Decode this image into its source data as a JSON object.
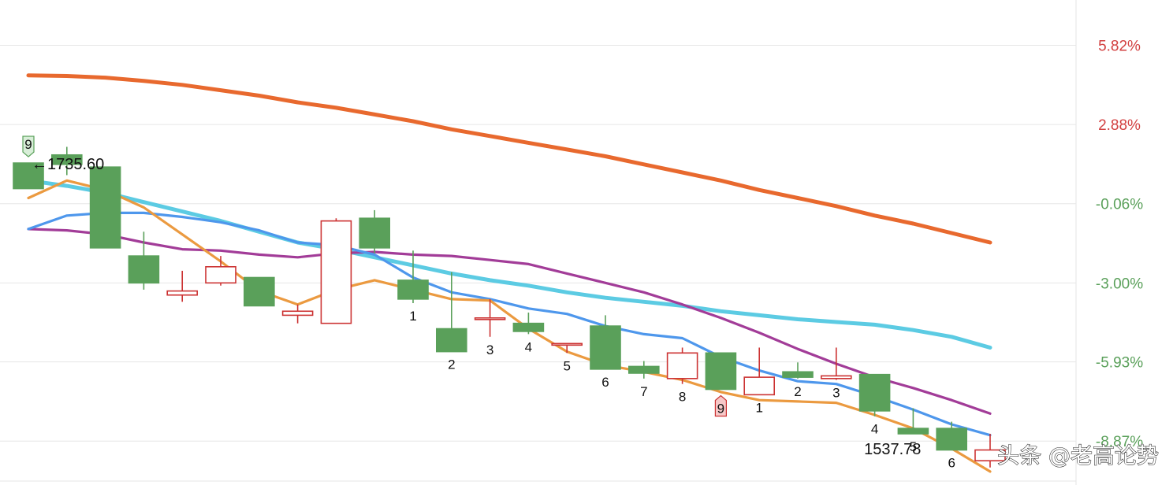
{
  "chart_data": {
    "type": "candlestick",
    "title": "",
    "price_axis": {
      "ticks": [
        "5.82%",
        "2.88%",
        "-0.06%",
        "-3.00%",
        "-5.93%",
        "-8.87%"
      ],
      "tick_values": [
        5.82,
        2.88,
        -0.06,
        -3.0,
        -5.93,
        -8.87
      ],
      "range": [
        -10.5,
        7.5
      ]
    },
    "colors": {
      "up": "#cc3333",
      "down": "#5aa05a",
      "axis_pos": "#d24040",
      "axis_neg": "#5aa05a",
      "grid": "#e6e6e6"
    },
    "candles": [
      {
        "o": 1.45,
        "h": 1.45,
        "c": 0.5,
        "l": 0.5
      },
      {
        "o": 1.75,
        "h": 2.05,
        "c": 1.4,
        "l": 1.0
      },
      {
        "o": 1.3,
        "h": 1.3,
        "c": -1.7,
        "l": -1.7
      },
      {
        "o": -2.0,
        "h": -1.1,
        "c": -3.0,
        "l": -3.25
      },
      {
        "o": -3.45,
        "h": -2.55,
        "c": -3.3,
        "l": -3.7
      },
      {
        "o": -3.0,
        "h": -2.0,
        "c": -2.4,
        "l": -3.1
      },
      {
        "o": -2.8,
        "h": -2.8,
        "c": -3.85,
        "l": -3.85
      },
      {
        "o": -4.2,
        "h": -3.8,
        "c": -4.05,
        "l": -4.5
      },
      {
        "o": -4.5,
        "h": -0.6,
        "c": -0.7,
        "l": -4.5
      },
      {
        "o": -0.6,
        "h": -0.3,
        "c": -1.7,
        "l": -1.9
      },
      {
        "o": -2.9,
        "h": -1.8,
        "c": -3.6,
        "l": -3.75
      },
      {
        "o": -4.7,
        "h": -2.6,
        "c": -5.55,
        "l": -5.55
      },
      {
        "o": -4.3,
        "h": -3.6,
        "c": -4.3,
        "l": -5.0
      },
      {
        "o": -4.5,
        "h": -4.1,
        "c": -4.8,
        "l": -4.9
      },
      {
        "o": -5.25,
        "h": -5.25,
        "c": -5.25,
        "l": -5.6
      },
      {
        "o": -4.6,
        "h": -4.2,
        "c": -6.2,
        "l": -6.2
      },
      {
        "o": -6.1,
        "h": -5.9,
        "c": -6.35,
        "l": -6.55
      },
      {
        "o": -6.55,
        "h": -5.4,
        "c": -5.6,
        "l": -6.75
      },
      {
        "o": -5.6,
        "h": -5.6,
        "c": -6.95,
        "l": -6.95
      },
      {
        "o": -7.15,
        "h": -5.4,
        "c": -6.5,
        "l": -7.15
      },
      {
        "o": -6.3,
        "h": -5.95,
        "c": -6.5,
        "l": -6.55
      },
      {
        "o": -6.55,
        "h": -5.4,
        "c": -6.45,
        "l": -6.6
      },
      {
        "o": -6.4,
        "h": -6.4,
        "c": -7.75,
        "l": -7.95
      },
      {
        "o": -8.4,
        "h": -7.65,
        "c": -8.6,
        "l": -8.6
      },
      {
        "o": -8.4,
        "h": -8.15,
        "c": -9.2,
        "l": -9.2
      },
      {
        "o": -9.6,
        "h": -8.6,
        "c": -9.2,
        "l": -9.85
      }
    ],
    "series": [
      {
        "name": "line-orange-thick",
        "color": "#e8692e",
        "width": 5,
        "values": [
          4.7,
          4.68,
          4.62,
          4.5,
          4.35,
          4.15,
          3.95,
          3.7,
          3.5,
          3.25,
          3.0,
          2.7,
          2.45,
          2.2,
          1.95,
          1.7,
          1.4,
          1.1,
          0.8,
          0.45,
          0.15,
          -0.15,
          -0.5,
          -0.8,
          -1.15,
          -1.5
        ]
      },
      {
        "name": "line-cyan",
        "color": "#5ccbe3",
        "width": 5,
        "values": [
          0.8,
          0.6,
          0.35,
          0.0,
          -0.35,
          -0.7,
          -1.1,
          -1.5,
          -1.75,
          -2.05,
          -2.35,
          -2.65,
          -2.9,
          -3.1,
          -3.35,
          -3.55,
          -3.7,
          -3.85,
          -4.05,
          -4.2,
          -4.35,
          -4.45,
          -4.55,
          -4.75,
          -5.0,
          -5.4
        ]
      },
      {
        "name": "line-purple",
        "color": "#a23c98",
        "width": 3.2,
        "values": [
          -1.0,
          -1.05,
          -1.2,
          -1.5,
          -1.75,
          -1.8,
          -1.95,
          -2.05,
          -1.9,
          -1.85,
          -1.95,
          -2.0,
          -2.15,
          -2.3,
          -2.65,
          -3.0,
          -3.35,
          -3.8,
          -4.3,
          -4.85,
          -5.45,
          -6.0,
          -6.5,
          -6.9,
          -7.35,
          -7.85
        ]
      },
      {
        "name": "line-blue",
        "color": "#4e97ec",
        "width": 3.2,
        "values": [
          -1.0,
          -0.5,
          -0.4,
          -0.4,
          -0.55,
          -0.75,
          -1.05,
          -1.5,
          -1.6,
          -1.95,
          -2.8,
          -3.35,
          -3.6,
          -3.95,
          -4.15,
          -4.6,
          -4.9,
          -5.05,
          -5.75,
          -6.25,
          -6.65,
          -6.75,
          -7.2,
          -7.7,
          -8.25,
          -8.65
        ]
      },
      {
        "name": "line-orange-light",
        "color": "#eb9a40",
        "width": 3.2,
        "values": [
          0.15,
          0.8,
          0.45,
          -0.2,
          -1.2,
          -2.2,
          -3.3,
          -3.8,
          -3.25,
          -2.9,
          -3.25,
          -3.6,
          -3.65,
          -4.7,
          -5.55,
          -6.05,
          -6.3,
          -6.6,
          -7.05,
          -7.35,
          -7.4,
          -7.45,
          -7.9,
          -8.4,
          -9.15,
          -10.0
        ]
      }
    ],
    "sequence_labels": [
      {
        "i": 10,
        "text": "1"
      },
      {
        "i": 11,
        "text": "2"
      },
      {
        "i": 12,
        "text": "3"
      },
      {
        "i": 13,
        "text": "4"
      },
      {
        "i": 14,
        "text": "5"
      },
      {
        "i": 15,
        "text": "6"
      },
      {
        "i": 16,
        "text": "7"
      },
      {
        "i": 17,
        "text": "8"
      },
      {
        "i": 19,
        "text": "1"
      },
      {
        "i": 20,
        "text": "2"
      },
      {
        "i": 21,
        "text": "3"
      },
      {
        "i": 22,
        "text": "4"
      },
      {
        "i": 23,
        "text": "5"
      },
      {
        "i": 24,
        "text": "6"
      }
    ],
    "markers": [
      {
        "i": 0,
        "text": "9",
        "kind": "down"
      },
      {
        "i": 18,
        "text": "9",
        "kind": "up"
      }
    ],
    "annotations": [
      {
        "i": 0,
        "text": "←1735.60",
        "kind": "high"
      },
      {
        "i": 23,
        "text": "1537.78",
        "kind": "low"
      }
    ],
    "watermark": "头条 @老高论势"
  }
}
